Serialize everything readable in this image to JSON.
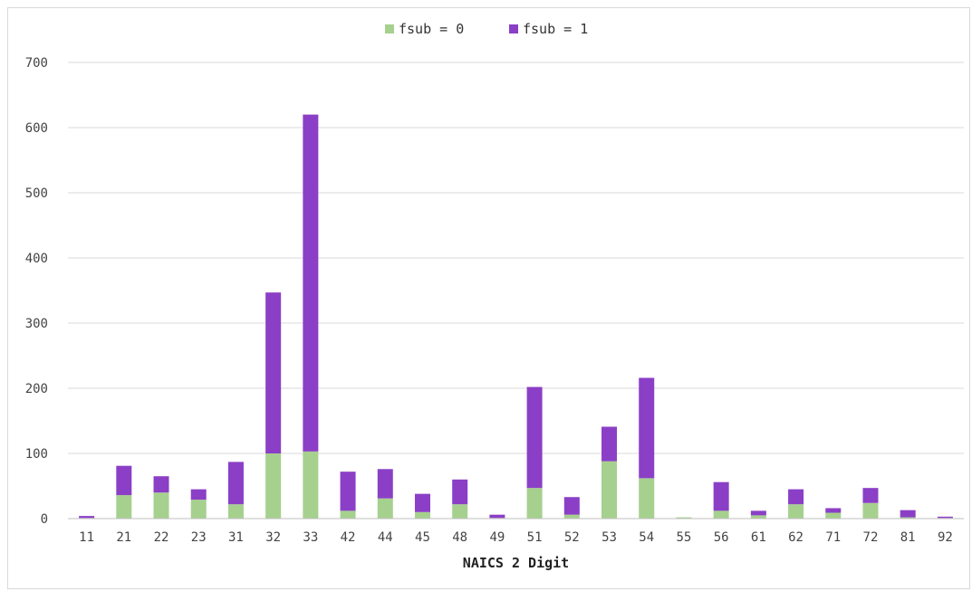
{
  "chart_data": {
    "type": "bar",
    "stacked": true,
    "title": "",
    "xlabel": "NAICS 2 Digit",
    "ylabel": "",
    "ylim": [
      0,
      700
    ],
    "yticks": [
      0,
      100,
      200,
      300,
      400,
      500,
      600,
      700
    ],
    "grid": true,
    "legend_position": "top",
    "categories": [
      "11",
      "21",
      "22",
      "23",
      "31",
      "32",
      "33",
      "42",
      "44",
      "45",
      "48",
      "49",
      "51",
      "52",
      "53",
      "54",
      "55",
      "56",
      "61",
      "62",
      "71",
      "72",
      "81",
      "92"
    ],
    "series": [
      {
        "name": "fsub = 0",
        "color": "#a6d08e",
        "values": [
          1,
          36,
          40,
          29,
          22,
          100,
          103,
          12,
          31,
          10,
          22,
          1,
          47,
          6,
          88,
          62,
          2,
          12,
          5,
          22,
          9,
          24,
          2,
          1
        ]
      },
      {
        "name": "fsub = 1",
        "color": "#8b3fc6",
        "values": [
          3,
          45,
          25,
          16,
          65,
          247,
          517,
          60,
          45,
          28,
          38,
          5,
          155,
          27,
          53,
          154,
          0,
          44,
          7,
          23,
          7,
          23,
          11,
          2
        ]
      }
    ]
  }
}
